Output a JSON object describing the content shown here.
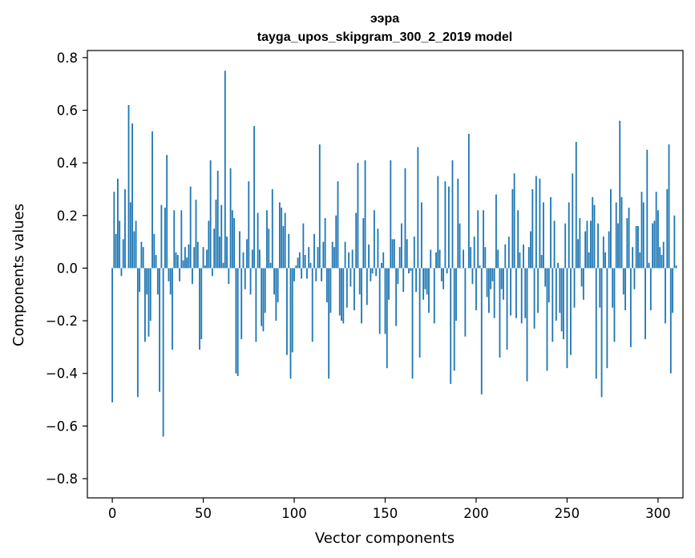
{
  "chart_data": {
    "type": "bar",
    "title": "ээра",
    "subtitle": "tayga_upos_skipgram_300_2_2019 model",
    "xlabel": "Vector components",
    "ylabel": "Components values",
    "xlim": [
      -13.7,
      313.7
    ],
    "ylim": [
      -0.873,
      0.827
    ],
    "x_ticks": [
      0,
      50,
      100,
      150,
      200,
      250,
      300
    ],
    "x_tick_labels": [
      "0",
      "50",
      "100",
      "150",
      "200",
      "250",
      "300"
    ],
    "y_ticks": [
      -0.8,
      -0.6,
      -0.4,
      -0.2,
      0.0,
      0.2,
      0.4,
      0.6,
      0.8
    ],
    "y_tick_labels": [
      "−0.8",
      "−0.6",
      "−0.4",
      "−0.2",
      "0.0",
      "0.2",
      "0.4",
      "0.6",
      "0.8"
    ],
    "bar_color": "#1f77b4",
    "grid": false,
    "values": [
      -0.51,
      0.29,
      0.13,
      0.34,
      0.18,
      -0.03,
      0.11,
      0.3,
      0.0,
      0.62,
      0.25,
      0.55,
      0.14,
      0.18,
      -0.49,
      -0.09,
      0.1,
      0.08,
      -0.28,
      -0.1,
      -0.26,
      -0.2,
      0.52,
      0.13,
      0.05,
      -0.1,
      -0.47,
      0.24,
      -0.64,
      0.23,
      0.43,
      -0.05,
      -0.1,
      -0.31,
      0.22,
      0.06,
      0.05,
      -0.05,
      0.22,
      0.03,
      0.08,
      0.04,
      0.09,
      0.31,
      -0.06,
      0.08,
      0.26,
      0.1,
      -0.31,
      -0.27,
      0.08,
      0.01,
      0.07,
      0.18,
      0.41,
      -0.03,
      0.15,
      0.26,
      0.37,
      0.12,
      0.24,
      0.02,
      0.75,
      0.12,
      -0.06,
      0.38,
      0.22,
      0.19,
      -0.4,
      -0.41,
      0.14,
      -0.27,
      0.06,
      -0.08,
      0.11,
      0.33,
      -0.1,
      0.07,
      0.54,
      -0.28,
      0.21,
      0.07,
      -0.22,
      -0.24,
      -0.17,
      0.22,
      0.15,
      0.02,
      0.3,
      -0.1,
      -0.2,
      -0.13,
      0.25,
      0.23,
      0.16,
      0.21,
      -0.33,
      0.13,
      -0.42,
      -0.32,
      -0.05,
      0.01,
      0.04,
      0.06,
      -0.04,
      0.17,
      0.05,
      -0.04,
      0.08,
      0.02,
      -0.28,
      0.13,
      -0.05,
      0.08,
      0.47,
      -0.05,
      0.1,
      0.19,
      -0.13,
      -0.42,
      -0.17,
      0.1,
      0.08,
      0.2,
      0.33,
      -0.18,
      -0.2,
      -0.21,
      0.1,
      -0.15,
      0.06,
      -0.07,
      0.07,
      -0.16,
      0.21,
      0.4,
      -0.1,
      -0.21,
      0.19,
      0.41,
      -0.14,
      0.09,
      -0.05,
      -0.02,
      0.22,
      -0.03,
      0.15,
      -0.25,
      0.02,
      0.06,
      -0.25,
      -0.38,
      -0.12,
      0.41,
      0.11,
      0.11,
      -0.22,
      -0.06,
      0.08,
      0.17,
      -0.09,
      0.38,
      0.11,
      -0.02,
      -0.01,
      -0.42,
      0.12,
      -0.09,
      0.46,
      -0.34,
      0.25,
      -0.12,
      -0.08,
      -0.1,
      -0.17,
      0.07,
      0.0,
      -0.21,
      0.06,
      0.35,
      0.07,
      -0.05,
      -0.08,
      0.33,
      -0.02,
      0.31,
      -0.44,
      0.41,
      -0.39,
      -0.2,
      0.34,
      0.17,
      0.0,
      0.07,
      -0.26,
      0.0,
      0.51,
      0.08,
      -0.06,
      0.12,
      -0.16,
      0.22,
      0.01,
      -0.48,
      0.22,
      0.08,
      -0.11,
      -0.17,
      -0.08,
      -0.05,
      -0.19,
      0.28,
      0.07,
      -0.34,
      -0.08,
      -0.12,
      0.09,
      -0.31,
      0.12,
      -0.18,
      0.3,
      0.36,
      -0.19,
      0.22,
      0.06,
      -0.21,
      0.09,
      -0.19,
      -0.43,
      0.08,
      0.14,
      0.3,
      -0.23,
      0.35,
      -0.17,
      0.34,
      0.05,
      0.25,
      -0.07,
      -0.39,
      -0.13,
      0.27,
      -0.28,
      0.18,
      -0.2,
      0.02,
      -0.17,
      -0.24,
      -0.27,
      0.17,
      -0.38,
      0.25,
      -0.33,
      0.36,
      -0.15,
      0.48,
      0.11,
      0.19,
      -0.07,
      -0.12,
      0.14,
      0.18,
      0.06,
      0.18,
      0.27,
      0.24,
      -0.42,
      0.17,
      -0.15,
      -0.49,
      0.12,
      0.06,
      -0.38,
      0.14,
      0.3,
      -0.15,
      -0.28,
      0.25,
      0.17,
      0.56,
      0.27,
      -0.1,
      -0.16,
      0.19,
      0.23,
      -0.3,
      0.08,
      -0.08,
      0.16,
      0.16,
      0.06,
      0.29,
      0.25,
      -0.27,
      0.45,
      0.02,
      -0.16,
      0.17,
      0.18,
      0.29,
      0.22,
      0.08,
      0.05,
      0.1,
      -0.21,
      0.3,
      0.47,
      -0.4,
      -0.17,
      0.2,
      0.01
    ]
  }
}
